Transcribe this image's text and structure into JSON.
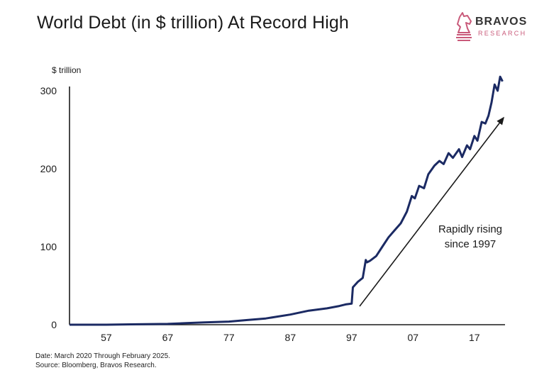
{
  "brand": {
    "name": "BRAVOS",
    "sub": "RESEARCH"
  },
  "footer": {
    "date": "Date: March 2020 Through February 2025.",
    "source": "Source: Bloomberg, Bravos Research."
  },
  "colors": {
    "line": "#1b2a63",
    "logo": "#c95a7a",
    "arrow": "#1a1a1a"
  },
  "chart_data": {
    "type": "line",
    "title": "World Debt (in $ trillion) At Record High",
    "ylabel": "$ trillion",
    "xlabel": "",
    "annotation": [
      "Rapidly rising",
      "since 1997"
    ],
    "x_ticks": [
      "57",
      "67",
      "77",
      "87",
      "97",
      "07",
      "17"
    ],
    "y_ticks": [
      0,
      100,
      200,
      300
    ],
    "xlim": [
      1951,
      2022
    ],
    "ylim": [
      0,
      300
    ],
    "grid": false,
    "series": [
      {
        "x": [
          1951,
          1957,
          1962,
          1967,
          1970,
          1973,
          1977,
          1980,
          1983,
          1987,
          1990,
          1993,
          1995,
          1996,
          1997,
          1997.2,
          1998,
          1998.8,
          1999.3,
          1999.5,
          2000,
          2001,
          2002,
          2003,
          2004,
          2005,
          2006,
          2006.8,
          2007.3,
          2008,
          2008.8,
          2009.5,
          2010.5,
          2011.3,
          2012,
          2012.8,
          2013.5,
          2014.5,
          2015,
          2015.8,
          2016.3,
          2017,
          2017.5,
          2018.2,
          2018.8,
          2019.3,
          2019.8,
          2020.3,
          2020.8,
          2021.2,
          2021.6
        ],
        "y": [
          0,
          0,
          0.5,
          1,
          2,
          3,
          4,
          6,
          8,
          13,
          18,
          21,
          24,
          26,
          27,
          48,
          55,
          60,
          83,
          80,
          82,
          88,
          100,
          112,
          121,
          130,
          145,
          165,
          162,
          178,
          175,
          193,
          204,
          210,
          206,
          220,
          214,
          225,
          215,
          230,
          225,
          242,
          236,
          260,
          258,
          268,
          285,
          308,
          300,
          318,
          312
        ]
      }
    ]
  }
}
